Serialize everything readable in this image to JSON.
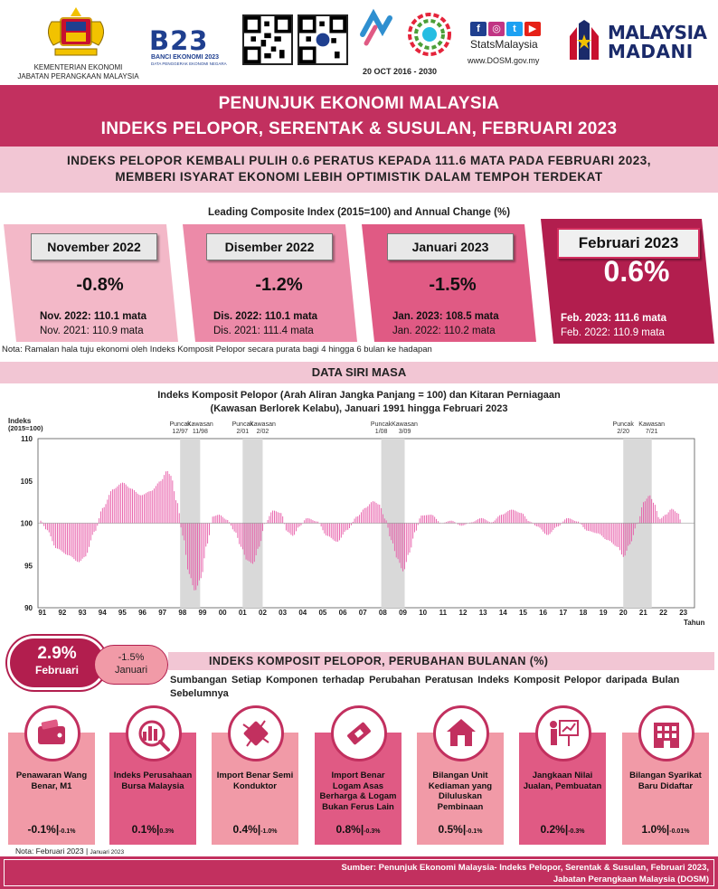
{
  "header": {
    "ministry_line1": "KEMENTERIAN EKONOMI",
    "ministry_line2": "JABATAN PERANGKAAN MALAYSIA",
    "census_title": "B23",
    "census_sub": "BANCI EKONOMI 2023",
    "census_sub2": "DATA PENGGERAK EKONOMI NEGARA",
    "sdg_date": "20 OCT  2016 - 2030",
    "social_name": "StatsMalaysia",
    "website": "www.DOSM.gov.my",
    "brand_line1": "MALAYSIA",
    "brand_line2": "MADANI",
    "brand_color": "#1a2a6a"
  },
  "title": {
    "line1": "PENUNJUK EKONOMI MALAYSIA",
    "line2": "INDEKS PELOPOR, SERENTAK & SUSULAN, FEBRUARI 2023"
  },
  "headline": {
    "line1": "INDEKS PELOPOR KEMBALI PULIH 0.6 PERATUS KEPADA 111.6 MATA PADA FEBRUARI 2023,",
    "line2": "MEMBERI ISYARAT EKONOMI LEBIH OPTIMISTIK DALAM TEMPOH TERDEKAT"
  },
  "lci": {
    "title": "Leading Composite Index (2015=100) and Annual Change (%)",
    "cards": [
      {
        "label": "November 2022",
        "pct": "-0.8%",
        "line1": "Nov. 2022: 110.1 mata",
        "line2": "Nov. 2021: 110.9 mata",
        "color": "#f3b8c8"
      },
      {
        "label": "Disember 2022",
        "pct": "-1.2%",
        "line1": "Dis. 2022: 110.1 mata",
        "line2": "Dis. 2021: 111.4 mata",
        "color": "#ec8aa8"
      },
      {
        "label": "Januari 2023",
        "pct": "-1.5%",
        "line1": "Jan. 2023: 108.5 mata",
        "line2": "Jan. 2022: 110.2 mata",
        "color": "#e05a84"
      },
      {
        "label": "Februari 2023",
        "pct": "0.6%",
        "line1": "Feb. 2023: 111.6 mata",
        "line2": "Feb. 2022: 110.9 mata",
        "color": "#c2305f"
      }
    ],
    "note": "Nota: Ramalan hala tuju ekonomi oleh Indeks Komposit Pelopor secara purata bagi 4 hingga 6 bulan ke hadapan"
  },
  "series_band": "DATA SIRI MASA",
  "chart_title": {
    "line1": "Indeks Komposit Pelopor (Arah Aliran Jangka Panjang = 100) dan Kitaran Perniagaan",
    "line2": "(Kawasan Berlorek Kelabu), Januari 1991 hingga Februari 2023"
  },
  "chart_data": {
    "type": "bar",
    "ylabel": "Indeks (2015=100)",
    "xlabel": "Tahun",
    "ylim": [
      90,
      110
    ],
    "yticks": [
      90,
      95,
      100,
      105,
      110
    ],
    "baseline": 100,
    "xticks": [
      "91",
      "92",
      "93",
      "94",
      "95",
      "96",
      "97",
      "98",
      "99",
      "00",
      "01",
      "02",
      "03",
      "04",
      "05",
      "06",
      "07",
      "08",
      "09",
      "10",
      "11",
      "12",
      "13",
      "14",
      "15",
      "16",
      "17",
      "18",
      "19",
      "20",
      "21",
      "22",
      "23"
    ],
    "x_start_year": 1991,
    "x_end_year": 2023,
    "recessions": [
      {
        "start": 1997.96,
        "end": 1998.96,
        "peak": "Puncak 12/97",
        "trough": "Kawasan 11/98"
      },
      {
        "start": 2001.08,
        "end": 2002.08,
        "peak": "Puncak 2/01",
        "trough": "Kawasan 2/02"
      },
      {
        "start": 2008.0,
        "end": 2009.17,
        "peak": "Puncak 1/08",
        "trough": "Kawasan 3/09"
      },
      {
        "start": 2020.08,
        "end": 2021.5,
        "peak": "Puncak 2/20",
        "trough": "Kawasan 7/21"
      }
    ],
    "series": [
      {
        "name": "Indeks Komposit Pelopor",
        "color": "#e75ba8",
        "anchors": [
          [
            1991.0,
            100.3
          ],
          [
            1991.3,
            99.2
          ],
          [
            1991.8,
            97.0
          ],
          [
            1992.4,
            96.2
          ],
          [
            1992.9,
            95.4
          ],
          [
            1993.2,
            96.0
          ],
          [
            1993.7,
            99.0
          ],
          [
            1994.1,
            101.8
          ],
          [
            1994.6,
            104.0
          ],
          [
            1995.1,
            104.8
          ],
          [
            1995.5,
            104.1
          ],
          [
            1996.0,
            103.3
          ],
          [
            1996.5,
            103.8
          ],
          [
            1997.0,
            105.0
          ],
          [
            1997.3,
            106.2
          ],
          [
            1997.5,
            105.6
          ],
          [
            1997.8,
            102.5
          ],
          [
            1998.1,
            98.5
          ],
          [
            1998.4,
            94.0
          ],
          [
            1998.7,
            92.0
          ],
          [
            1999.0,
            93.5
          ],
          [
            1999.3,
            97.5
          ],
          [
            1999.6,
            100.8
          ],
          [
            1999.9,
            101.0
          ],
          [
            2000.3,
            100.4
          ],
          [
            2000.7,
            99.0
          ],
          [
            2001.0,
            97.2
          ],
          [
            2001.3,
            95.6
          ],
          [
            2001.6,
            95.2
          ],
          [
            2001.9,
            97.2
          ],
          [
            2002.2,
            100.0
          ],
          [
            2002.6,
            101.5
          ],
          [
            2003.0,
            101.2
          ],
          [
            2003.3,
            99.0
          ],
          [
            2003.6,
            98.5
          ],
          [
            2003.9,
            99.6
          ],
          [
            2004.3,
            100.6
          ],
          [
            2004.8,
            100.2
          ],
          [
            2005.3,
            98.5
          ],
          [
            2005.8,
            97.8
          ],
          [
            2006.3,
            99.2
          ],
          [
            2006.8,
            100.8
          ],
          [
            2007.2,
            101.8
          ],
          [
            2007.6,
            102.6
          ],
          [
            2007.9,
            102.2
          ],
          [
            2008.2,
            100.5
          ],
          [
            2008.5,
            98.0
          ],
          [
            2008.8,
            95.8
          ],
          [
            2009.1,
            94.3
          ],
          [
            2009.4,
            96.5
          ],
          [
            2009.7,
            99.0
          ],
          [
            2010.0,
            100.9
          ],
          [
            2010.5,
            101.0
          ],
          [
            2011.0,
            100.0
          ],
          [
            2011.5,
            100.3
          ],
          [
            2012.0,
            99.7
          ],
          [
            2012.5,
            100.1
          ],
          [
            2013.0,
            100.6
          ],
          [
            2013.5,
            100.1
          ],
          [
            2014.0,
            101.0
          ],
          [
            2014.5,
            101.6
          ],
          [
            2015.0,
            101.2
          ],
          [
            2015.4,
            100.2
          ],
          [
            2015.8,
            99.6
          ],
          [
            2016.3,
            98.6
          ],
          [
            2016.8,
            99.6
          ],
          [
            2017.3,
            100.6
          ],
          [
            2017.8,
            100.2
          ],
          [
            2018.3,
            99.1
          ],
          [
            2018.8,
            98.8
          ],
          [
            2019.3,
            98.0
          ],
          [
            2019.8,
            97.2
          ],
          [
            2020.1,
            96.0
          ],
          [
            2020.4,
            97.5
          ],
          [
            2020.8,
            100.0
          ],
          [
            2021.1,
            102.5
          ],
          [
            2021.4,
            103.3
          ],
          [
            2021.6,
            102.4
          ],
          [
            2021.9,
            100.5
          ],
          [
            2022.2,
            101.0
          ],
          [
            2022.5,
            101.7
          ],
          [
            2022.8,
            101.2
          ],
          [
            2023.0,
            100.0
          ],
          [
            2023.08,
            99.3
          ]
        ]
      }
    ]
  },
  "monthly": {
    "main_value": "2.9%",
    "main_label": "Februari",
    "prev_value": "-1.5%",
    "prev_label": "Januari",
    "band_title": "INDEKS KOMPOSIT PELOPOR, PERUBAHAN BULANAN (%)",
    "contrib_text": "Sumbangan Setiap Komponen terhadap Perubahan Peratusan Indeks Komposit Pelopor daripada Bulan Sebelumnya",
    "components": [
      {
        "name": "Penawaran Wang Benar, M1",
        "feb": "-0.1%",
        "jan": "-0.1%",
        "icon": "wallet-icon"
      },
      {
        "name": "Indeks Perusahaan Bursa Malaysia",
        "feb": "0.1%",
        "jan": "0.3%",
        "icon": "chart-magnifier-icon"
      },
      {
        "name": "Import Benar Semi Konduktor",
        "feb": "0.4%",
        "jan": "-1.0%",
        "icon": "chip-icon"
      },
      {
        "name": "Import Benar Logam Asas Berharga & Logam Bukan Ferus Lain",
        "feb": "0.8%",
        "jan": "-0.3%",
        "icon": "metal-bar-icon"
      },
      {
        "name": "Bilangan Unit Kediaman yang Diluluskan Pembinaan",
        "feb": "0.5%",
        "jan": "-0.1%",
        "icon": "house-icon"
      },
      {
        "name": "Jangkaan Nilai Jualan, Pembuatan",
        "feb": "0.2%",
        "jan": "-0.3%",
        "icon": "presentation-icon"
      },
      {
        "name": "Bilangan Syarikat Baru Didaftar",
        "feb": "1.0%",
        "jan": "-0.01%",
        "icon": "building-icon"
      }
    ],
    "note_feb": "Nota: Februari 2023",
    "note_jan": "Januari  2023"
  },
  "source": {
    "line1": "Sumber: Penunjuk Ekonomi Malaysia- Indeks Pelopor, Serentak & Susulan, Februari 2023,",
    "line2": "Jabatan Perangkaan Malaysia (DOSM)"
  }
}
